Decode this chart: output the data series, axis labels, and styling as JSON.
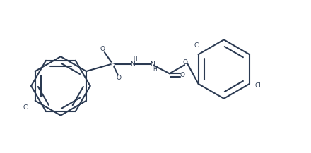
{
  "bg_color": "#ffffff",
  "line_color": "#2b3a52",
  "text_color": "#2b3a52",
  "line_width": 1.5,
  "fig_width": 4.4,
  "fig_height": 2.17,
  "dpi": 100,
  "xlim": [
    0,
    44
  ],
  "ylim": [
    0,
    21.7
  ]
}
